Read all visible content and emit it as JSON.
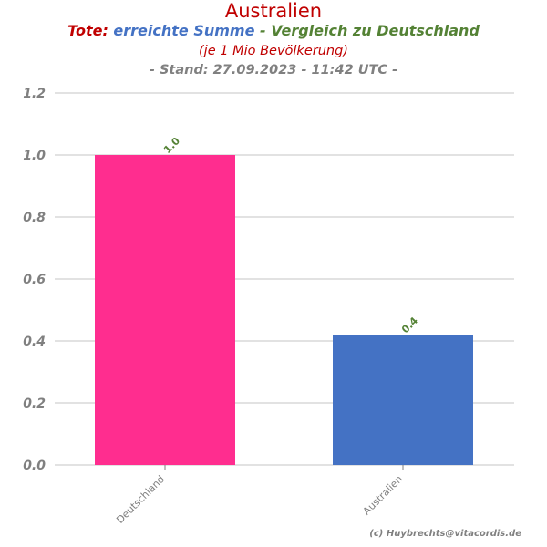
{
  "header": {
    "title": "Australien",
    "subtitle_part1": "Tote:",
    "subtitle_part2": "erreichte Summe",
    "subtitle_part3": "- Vergleich zu Deutschland",
    "subtitle_line2": "(je 1 Mio Bevölkerung)",
    "subtitle_line3": "- Stand: 27.09.2023 - 11:42 UTC -"
  },
  "credit": "(c) Huybrechts@vitacordis.de",
  "colors": {
    "title": "#c00000",
    "subtitle_blue": "#4472c4",
    "subtitle_green": "#548235",
    "subtitle_line2": "#c00000",
    "subtitle_line3": "#808080",
    "axis_text": "#808080",
    "grid": "#d9d9d9",
    "value_label": "#548235",
    "credit": "#808080"
  },
  "chart_data": {
    "type": "bar",
    "categories": [
      "Deutschland",
      "Australien"
    ],
    "values": [
      1.0,
      0.42
    ],
    "value_labels": [
      "1.0",
      "0.4"
    ],
    "bar_colors": [
      "#ff2d8f",
      "#4472c4"
    ],
    "yticks": [
      "0.0",
      "0.2",
      "0.4",
      "0.6",
      "0.8",
      "1.0",
      "1.2"
    ],
    "ylim": [
      0,
      1.2
    ],
    "grid": true,
    "xlabel": "",
    "ylabel": ""
  }
}
